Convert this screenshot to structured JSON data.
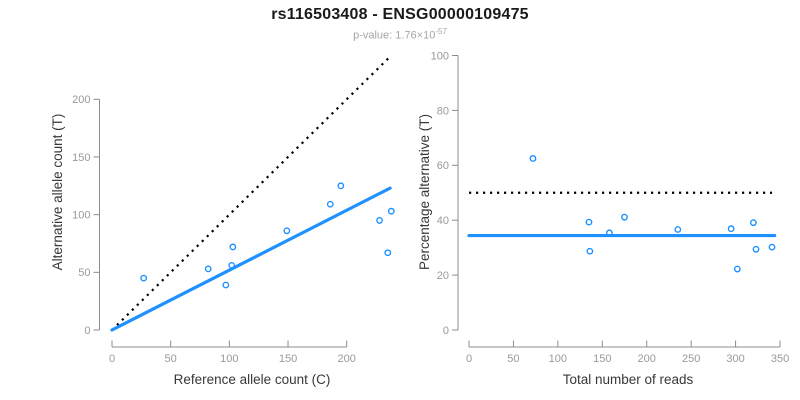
{
  "header": {
    "title": "rs116503408 - ENSG00000109475",
    "subtitle_prefix": "p-value: 1.76×10",
    "subtitle_exponent": "-57"
  },
  "colors": {
    "accent_blue": "#1E90FF",
    "dotted_line_black": "#000000",
    "axis_line_gray": "#8c8c8c",
    "tick_label_gray": "#999999",
    "axis_title_dark": "#383838",
    "title_black": "#1a1a1a",
    "subtitle_gray": "#a6a6a6"
  },
  "chart_data": [
    {
      "id": "allele-counts-scatter",
      "type": "scatter",
      "xlabel": "Reference allele count (C)",
      "ylabel": "Alternative allele count (T)",
      "xlim": [
        0,
        245
      ],
      "ylim": [
        0,
        245
      ],
      "xticks": [
        0,
        50,
        100,
        150,
        200
      ],
      "yticks": [
        0,
        50,
        100,
        150,
        200
      ],
      "grid": false,
      "legend": "none",
      "marker": "open-circle",
      "points": [
        [
          27,
          45
        ],
        [
          82,
          53
        ],
        [
          97,
          39
        ],
        [
          102,
          56
        ],
        [
          103,
          72
        ],
        [
          149,
          86
        ],
        [
          186,
          109
        ],
        [
          195,
          125
        ],
        [
          228,
          95
        ],
        [
          235,
          67
        ],
        [
          238,
          103
        ]
      ],
      "lines": [
        {
          "name": "identity-line",
          "style": "dotted",
          "color": "#000000",
          "x1": 0,
          "y1": 0,
          "x2": 237,
          "y2": 237
        },
        {
          "name": "fit-line",
          "style": "solid",
          "color": "#1E90FF",
          "x1": 0,
          "y1": 0,
          "x2": 237,
          "y2": 123
        }
      ]
    },
    {
      "id": "percentage-alternative-scatter",
      "type": "scatter",
      "xlabel": "Total number of reads",
      "ylabel": "Percentage alternative (T)",
      "xlim": [
        0,
        355
      ],
      "ylim": [
        0,
        100
      ],
      "xticks": [
        0,
        50,
        100,
        150,
        200,
        250,
        300,
        350
      ],
      "yticks": [
        0,
        20,
        40,
        60,
        80,
        100
      ],
      "grid": false,
      "legend": "none",
      "marker": "open-circle",
      "points": [
        [
          72,
          62.5
        ],
        [
          135,
          39.3
        ],
        [
          136,
          28.7
        ],
        [
          158,
          35.4
        ],
        [
          175,
          41.1
        ],
        [
          235,
          36.6
        ],
        [
          295,
          36.9
        ],
        [
          302,
          22.2
        ],
        [
          320,
          39.1
        ],
        [
          323,
          29.4
        ],
        [
          341,
          30.2
        ]
      ],
      "lines": [
        {
          "name": "expected-50pct-line",
          "style": "dotted",
          "color": "#000000",
          "x1": 0,
          "y1": 50,
          "x2": 341,
          "y2": 50
        },
        {
          "name": "mean-percentage-line",
          "style": "solid",
          "color": "#1E90FF",
          "x1": 0,
          "y1": 34.4,
          "x2": 344,
          "y2": 34.4
        }
      ]
    }
  ]
}
